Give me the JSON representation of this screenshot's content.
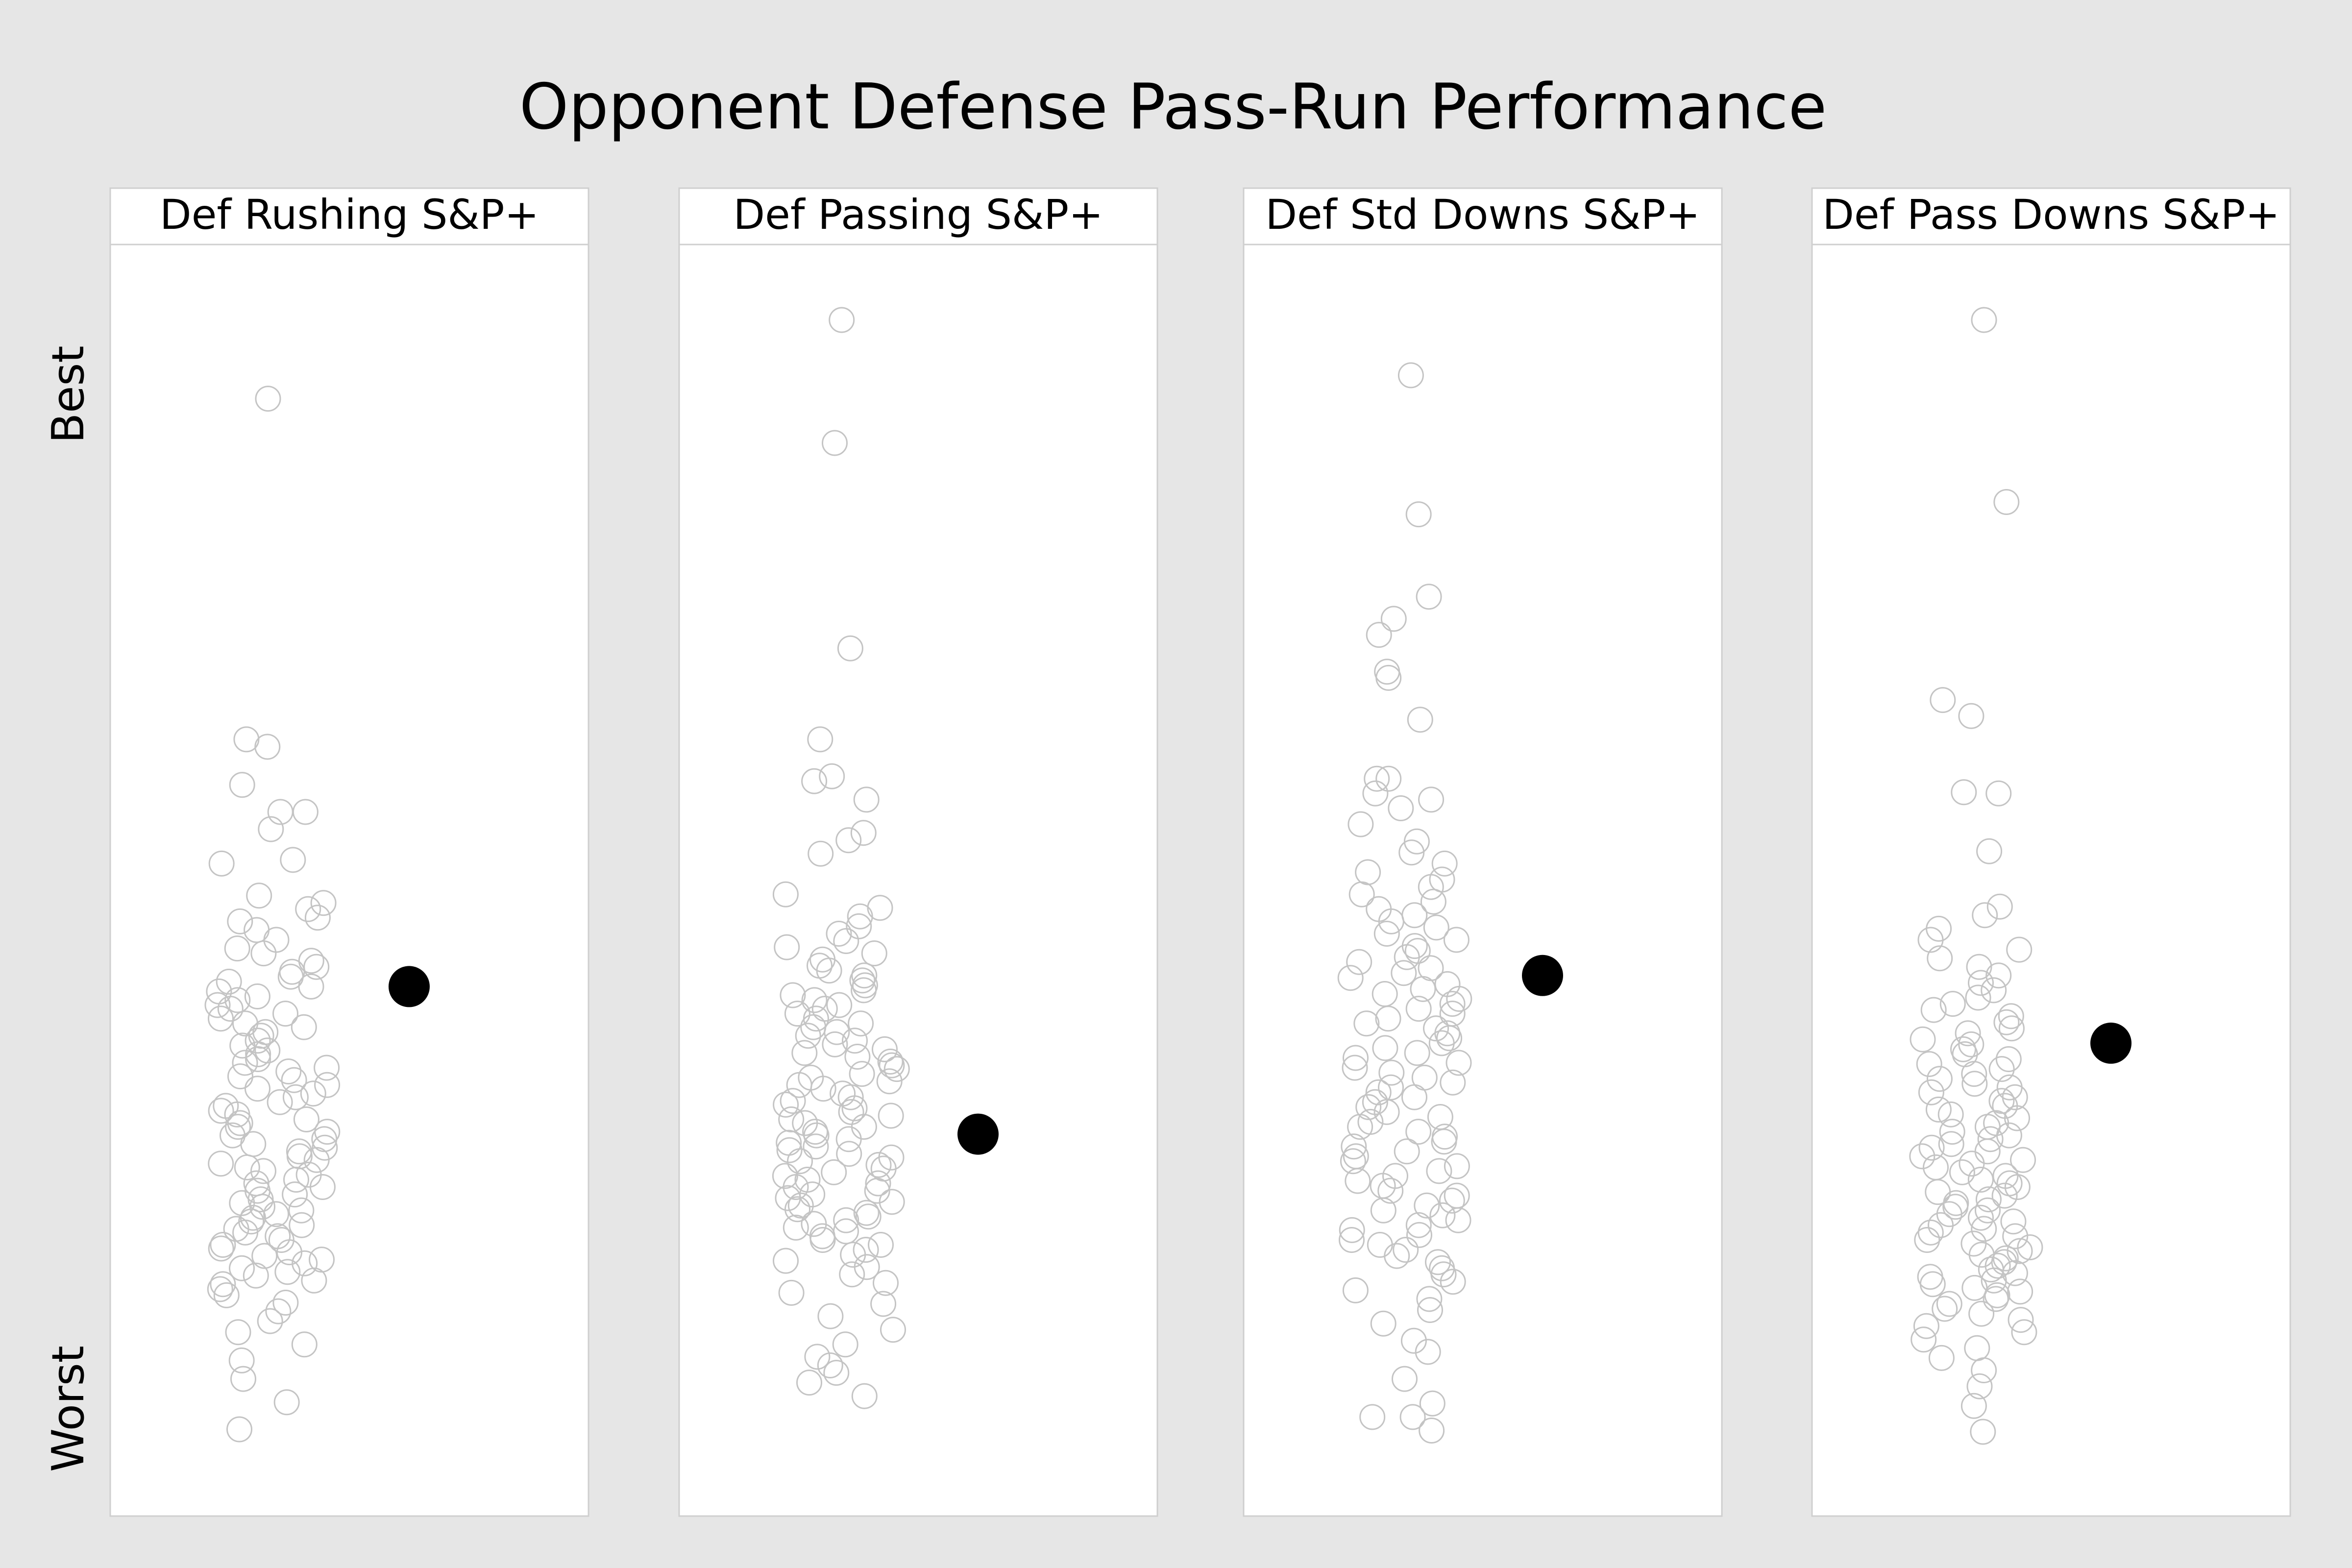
{
  "chart_data": {
    "type": "scatter",
    "title": "Opponent Defense Pass-Run Performance",
    "ylabel_top": "Best",
    "ylabel_bottom": "Worst",
    "ylim": [
      0,
      1
    ],
    "grid": false,
    "legend": "none",
    "colors": {
      "points": "#c4c4c4",
      "highlight": "#000000",
      "background": "#e6e6e6",
      "panel": "#ffffff"
    },
    "panels": [
      {
        "name": "Def Rushing S&P+",
        "highlight": 0.409,
        "values": [
          0.887,
          0.61,
          0.604,
          0.573,
          0.551,
          0.551,
          0.537,
          0.512,
          0.509,
          0.483,
          0.477,
          0.472,
          0.465,
          0.462,
          0.455,
          0.447,
          0.44,
          0.436,
          0.43,
          0.425,
          0.421,
          0.417,
          0.413,
          0.409,
          0.405,
          0.401,
          0.398,
          0.394,
          0.391,
          0.387,
          0.383,
          0.379,
          0.376,
          0.372,
          0.369,
          0.365,
          0.361,
          0.357,
          0.354,
          0.35,
          0.347,
          0.343,
          0.34,
          0.336,
          0.333,
          0.329,
          0.326,
          0.322,
          0.319,
          0.315,
          0.312,
          0.308,
          0.305,
          0.301,
          0.298,
          0.295,
          0.291,
          0.288,
          0.285,
          0.281,
          0.278,
          0.275,
          0.271,
          0.268,
          0.265,
          0.262,
          0.259,
          0.256,
          0.252,
          0.249,
          0.246,
          0.243,
          0.24,
          0.236,
          0.233,
          0.23,
          0.227,
          0.224,
          0.221,
          0.218,
          0.215,
          0.212,
          0.209,
          0.206,
          0.203,
          0.199,
          0.196,
          0.193,
          0.19,
          0.187,
          0.184,
          0.18,
          0.177,
          0.174,
          0.17,
          0.167,
          0.163,
          0.158,
          0.152,
          0.145,
          0.137,
          0.128,
          0.118,
          0.105,
          0.09,
          0.071,
          0.049
        ]
      },
      {
        "name": "Def Passing S&P+",
        "highlight": 0.289,
        "values": [
          0.951,
          0.851,
          0.684,
          0.61,
          0.58,
          0.576,
          0.561,
          0.534,
          0.528,
          0.517,
          0.484,
          0.473,
          0.466,
          0.458,
          0.452,
          0.446,
          0.441,
          0.436,
          0.431,
          0.426,
          0.422,
          0.418,
          0.414,
          0.41,
          0.406,
          0.402,
          0.398,
          0.394,
          0.391,
          0.387,
          0.383,
          0.379,
          0.376,
          0.372,
          0.369,
          0.365,
          0.362,
          0.358,
          0.355,
          0.352,
          0.348,
          0.345,
          0.342,
          0.338,
          0.335,
          0.332,
          0.329,
          0.326,
          0.322,
          0.319,
          0.316,
          0.313,
          0.31,
          0.307,
          0.304,
          0.301,
          0.298,
          0.295,
          0.291,
          0.288,
          0.285,
          0.282,
          0.279,
          0.276,
          0.273,
          0.27,
          0.267,
          0.264,
          0.261,
          0.258,
          0.255,
          0.252,
          0.249,
          0.246,
          0.243,
          0.24,
          0.237,
          0.234,
          0.231,
          0.228,
          0.225,
          0.222,
          0.219,
          0.216,
          0.213,
          0.21,
          0.206,
          0.203,
          0.199,
          0.195,
          0.191,
          0.186,
          0.181,
          0.175,
          0.168,
          0.16,
          0.151,
          0.141,
          0.13,
          0.118,
          0.108,
          0.101,
          0.095,
          0.087,
          0.076
        ]
      },
      {
        "name": "Def Std Downs S&P+",
        "highlight": 0.418,
        "values": [
          0.906,
          0.793,
          0.726,
          0.708,
          0.695,
          0.665,
          0.66,
          0.626,
          0.578,
          0.578,
          0.566,
          0.561,
          0.554,
          0.541,
          0.527,
          0.518,
          0.509,
          0.502,
          0.496,
          0.49,
          0.484,
          0.478,
          0.472,
          0.467,
          0.462,
          0.457,
          0.452,
          0.447,
          0.442,
          0.438,
          0.433,
          0.429,
          0.424,
          0.42,
          0.416,
          0.411,
          0.407,
          0.403,
          0.399,
          0.395,
          0.391,
          0.387,
          0.383,
          0.379,
          0.375,
          0.371,
          0.367,
          0.363,
          0.359,
          0.355,
          0.351,
          0.347,
          0.343,
          0.339,
          0.335,
          0.331,
          0.327,
          0.323,
          0.319,
          0.315,
          0.311,
          0.307,
          0.303,
          0.299,
          0.295,
          0.291,
          0.287,
          0.283,
          0.279,
          0.275,
          0.271,
          0.267,
          0.263,
          0.259,
          0.255,
          0.251,
          0.247,
          0.243,
          0.239,
          0.235,
          0.231,
          0.227,
          0.223,
          0.219,
          0.215,
          0.211,
          0.207,
          0.203,
          0.199,
          0.195,
          0.19,
          0.185,
          0.18,
          0.175,
          0.169,
          0.162,
          0.155,
          0.146,
          0.135,
          0.121,
          0.112,
          0.09,
          0.07,
          0.059,
          0.059,
          0.048
        ]
      },
      {
        "name": "Def Pass Downs S&P+",
        "highlight": 0.363,
        "values": [
          0.951,
          0.803,
          0.642,
          0.629,
          0.566,
          0.567,
          0.519,
          0.474,
          0.467,
          0.456,
          0.447,
          0.439,
          0.432,
          0.425,
          0.418,
          0.412,
          0.406,
          0.4,
          0.395,
          0.39,
          0.385,
          0.38,
          0.375,
          0.371,
          0.366,
          0.362,
          0.358,
          0.354,
          0.35,
          0.346,
          0.342,
          0.338,
          0.334,
          0.33,
          0.327,
          0.323,
          0.319,
          0.316,
          0.312,
          0.309,
          0.305,
          0.302,
          0.298,
          0.295,
          0.291,
          0.288,
          0.285,
          0.281,
          0.278,
          0.275,
          0.271,
          0.268,
          0.265,
          0.262,
          0.258,
          0.255,
          0.252,
          0.249,
          0.246,
          0.242,
          0.239,
          0.236,
          0.233,
          0.23,
          0.227,
          0.224,
          0.221,
          0.218,
          0.215,
          0.212,
          0.209,
          0.206,
          0.203,
          0.2,
          0.197,
          0.194,
          0.191,
          0.188,
          0.185,
          0.182,
          0.179,
          0.176,
          0.173,
          0.17,
          0.167,
          0.164,
          0.161,
          0.158,
          0.155,
          0.151,
          0.147,
          0.143,
          0.138,
          0.133,
          0.128,
          0.122,
          0.115,
          0.107,
          0.097,
          0.084,
          0.068,
          0.047
        ]
      }
    ]
  }
}
